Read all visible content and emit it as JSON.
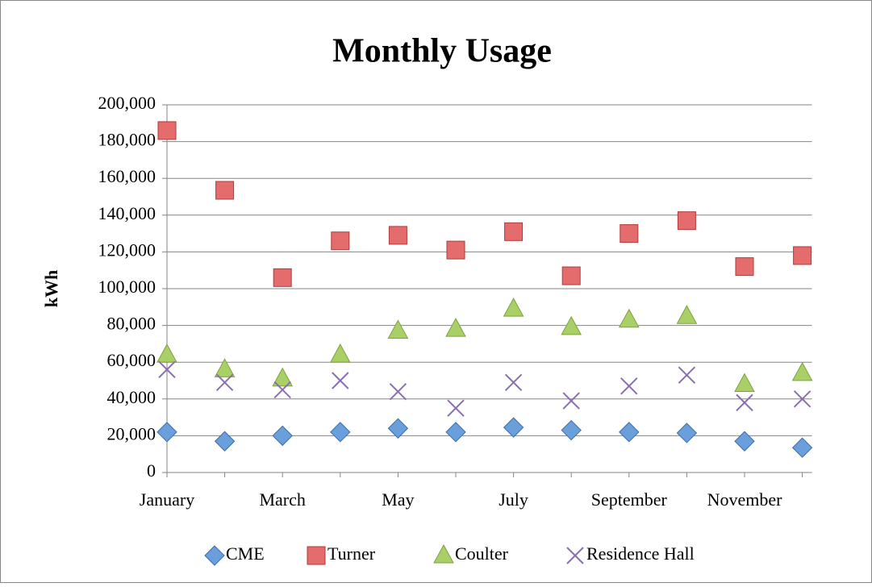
{
  "chart_data": {
    "type": "scatter",
    "title": "Monthly Usage",
    "y_label": "kWh",
    "categories": [
      "January",
      null,
      "March",
      null,
      "May",
      null,
      "July",
      null,
      "September",
      null,
      "November",
      null
    ],
    "series": [
      {
        "name": "CME",
        "color": "#6a9fdc",
        "marker": "diamond",
        "values": [
          22000,
          17000,
          20000,
          22000,
          24000,
          22000,
          24500,
          23000,
          22000,
          21500,
          17000,
          13500
        ]
      },
      {
        "name": "Turner",
        "color": "#e46c6c",
        "marker": "square",
        "values": [
          186000,
          153500,
          106000,
          126000,
          129000,
          121000,
          131000,
          107000,
          130000,
          137000,
          112000,
          118000
        ]
      },
      {
        "name": "Coulter",
        "color": "#a9d066",
        "marker": "triangle",
        "values": [
          64000,
          56000,
          51000,
          64000,
          77000,
          78000,
          89000,
          79000,
          83000,
          85000,
          48000,
          54000
        ]
      },
      {
        "name": "Residence Hall",
        "color": "#8a6fb0",
        "marker": "x",
        "values": [
          56000,
          49000,
          45000,
          50000,
          44000,
          35000,
          49000,
          39000,
          47000,
          53000,
          38000,
          40000
        ]
      }
    ],
    "ylim": [
      0,
      200000
    ],
    "yticks": [
      0,
      {
        "value": 20000,
        "label": "20,000"
      },
      {
        "value": 40000,
        "label": "40,000"
      },
      {
        "value": 60000,
        "label": "60,000"
      },
      {
        "value": 80000,
        "label": "80,000"
      },
      {
        "value": 100000,
        "label": "100,000"
      },
      {
        "value": 120000,
        "label": "120,000"
      },
      {
        "value": 140000,
        "label": "140,000"
      },
      {
        "value": 160000,
        "label": "160,000"
      },
      {
        "value": 180000,
        "label": "180,000"
      },
      {
        "value": 200000,
        "label": "200,000"
      }
    ],
    "grid": true,
    "legend": "bottom"
  }
}
